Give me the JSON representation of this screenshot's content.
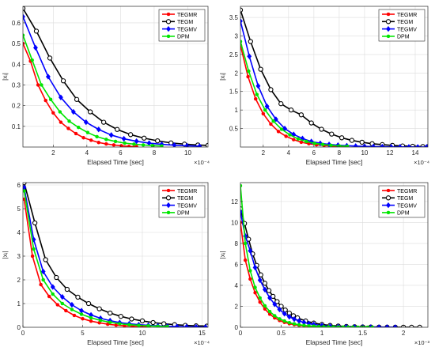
{
  "legend_entries": [
    "TEGMR",
    "TEGM",
    "TEGMV",
    "DPM"
  ],
  "series_colors": {
    "TEGMR": "#ff0000",
    "TEGM": "#000000",
    "TEGMV": "#0000ff",
    "DPM": "#00e600"
  },
  "chart_data": [
    {
      "type": "line",
      "xlabel": "Elapsed Time [sec]",
      "ylabel": "|xᵢ|",
      "xlim": [
        0.2,
        11.2
      ],
      "ylim": [
        0,
        0.68
      ],
      "x_ticks": [
        2,
        4,
        6,
        8,
        10
      ],
      "x_tick_labels": [
        "2",
        "4",
        "6",
        "8",
        "10"
      ],
      "y_ticks": [
        0.1,
        0.2,
        0.3,
        0.4,
        0.5,
        0.6
      ],
      "y_tick_labels": [
        "0.1",
        "0.2",
        "0.3",
        "0.4",
        "0.5",
        "0.6"
      ],
      "x_exponent": "×10⁻⁴",
      "grid": true,
      "legend_position": "top-right",
      "series": [
        {
          "name": "TEGMR",
          "marker": "dot",
          "x": [
            0.2,
            0.65,
            1.1,
            1.55,
            2.0,
            2.45,
            2.9,
            3.35,
            3.8,
            4.25,
            4.7,
            5.15,
            5.6,
            6.05,
            6.5,
            6.95
          ],
          "y": [
            0.5,
            0.415,
            0.3,
            0.225,
            0.165,
            0.12,
            0.09,
            0.065,
            0.045,
            0.033,
            0.022,
            0.015,
            0.01,
            0.006,
            0.003,
            0.002
          ]
        },
        {
          "name": "TEGM",
          "marker": "circle",
          "x": [
            0.2,
            1.0,
            1.8,
            2.6,
            3.4,
            4.2,
            5.0,
            5.8,
            6.6,
            7.4,
            8.2,
            9.0,
            9.8,
            10.6,
            11.2
          ],
          "y": [
            0.67,
            0.56,
            0.43,
            0.32,
            0.23,
            0.17,
            0.12,
            0.085,
            0.06,
            0.043,
            0.03,
            0.02,
            0.014,
            0.01,
            0.008
          ]
        },
        {
          "name": "TEGMV",
          "marker": "diamond",
          "x": [
            0.2,
            0.95,
            1.7,
            2.45,
            3.2,
            3.95,
            4.7,
            5.45,
            6.2,
            6.95,
            7.7,
            8.45,
            9.2,
            9.95,
            10.7
          ],
          "y": [
            0.63,
            0.48,
            0.34,
            0.24,
            0.17,
            0.12,
            0.085,
            0.058,
            0.04,
            0.028,
            0.019,
            0.013,
            0.009,
            0.006,
            0.004
          ]
        },
        {
          "name": "DPM",
          "marker": "dot",
          "x": [
            0.2,
            0.75,
            1.3,
            1.85,
            2.4,
            2.95,
            3.5,
            4.05,
            4.6,
            5.15,
            5.7,
            6.25,
            6.8,
            7.35,
            7.9,
            8.45
          ],
          "y": [
            0.54,
            0.42,
            0.3,
            0.23,
            0.17,
            0.125,
            0.095,
            0.07,
            0.05,
            0.037,
            0.027,
            0.019,
            0.014,
            0.01,
            0.007,
            0.005
          ]
        }
      ]
    },
    {
      "type": "line",
      "xlabel": "Elapsed Time [sec]",
      "ylabel": "|xᵢ|",
      "xlim": [
        0.2,
        15.0
      ],
      "ylim": [
        0,
        3.8
      ],
      "x_ticks": [
        2,
        4,
        6,
        8,
        10,
        12,
        14
      ],
      "x_tick_labels": [
        "2",
        "4",
        "6",
        "8",
        "10",
        "12",
        "14"
      ],
      "y_ticks": [
        0.5,
        1,
        1.5,
        2,
        2.5,
        3,
        3.5
      ],
      "y_tick_labels": [
        "0.5",
        "1",
        "1.5",
        "2",
        "2.5",
        "3",
        "3.5"
      ],
      "x_exponent": "×10⁻⁴",
      "grid": true,
      "legend_position": "top-right",
      "series": [
        {
          "name": "TEGMR",
          "marker": "dot",
          "x": [
            0.2,
            0.8,
            1.4,
            2.0,
            2.6,
            3.2,
            3.8,
            4.4,
            5.0,
            5.6,
            6.2,
            6.8,
            7.4,
            8.0,
            8.6
          ],
          "y": [
            2.75,
            1.9,
            1.3,
            0.9,
            0.62,
            0.42,
            0.29,
            0.2,
            0.13,
            0.09,
            0.06,
            0.04,
            0.025,
            0.015,
            0.01
          ]
        },
        {
          "name": "TEGM",
          "marker": "circle",
          "x": [
            0.2,
            1.0,
            1.8,
            2.6,
            3.4,
            4.2,
            5.0,
            5.8,
            6.6,
            7.4,
            8.2,
            9.0,
            9.8,
            10.6,
            11.4,
            12.2,
            13.0,
            13.8,
            14.6,
            15.0
          ],
          "y": [
            3.7,
            2.85,
            2.1,
            1.55,
            1.17,
            1.0,
            0.87,
            0.65,
            0.48,
            0.35,
            0.25,
            0.18,
            0.13,
            0.09,
            0.065,
            0.045,
            0.03,
            0.02,
            0.013,
            0.01
          ]
        },
        {
          "name": "TEGMV",
          "marker": "diamond",
          "x": [
            0.2,
            0.9,
            1.6,
            2.3,
            3.0,
            3.7,
            4.4,
            5.1,
            5.8,
            6.5,
            7.2,
            7.9,
            8.6,
            9.3,
            10.0,
            10.7,
            11.4,
            12.1,
            12.8,
            13.5,
            14.2,
            14.9
          ],
          "y": [
            3.4,
            2.45,
            1.65,
            1.1,
            0.75,
            0.5,
            0.34,
            0.23,
            0.15,
            0.1,
            0.07,
            0.05,
            0.035,
            0.025,
            0.018,
            0.012,
            0.009,
            0.006,
            0.004,
            0.003,
            0.002,
            0.001
          ]
        },
        {
          "name": "DPM",
          "marker": "dot",
          "x": [
            0.2,
            0.85,
            1.5,
            2.15,
            2.8,
            3.45,
            4.1,
            4.75,
            5.4,
            6.05,
            6.7,
            7.35,
            8.0,
            8.65
          ],
          "y": [
            2.85,
            2.05,
            1.42,
            1.0,
            0.7,
            0.48,
            0.33,
            0.22,
            0.15,
            0.1,
            0.07,
            0.045,
            0.03,
            0.02
          ]
        }
      ]
    },
    {
      "type": "line",
      "xlabel": "Elapsed Time [sec]",
      "ylabel": "|xᵢ|",
      "xlim": [
        0,
        15.5
      ],
      "ylim": [
        0,
        6.1
      ],
      "x_ticks": [
        0,
        5,
        10,
        15
      ],
      "x_tick_labels": [
        "0",
        "5",
        "10",
        "15"
      ],
      "y_ticks": [
        0,
        1,
        2,
        3,
        4,
        5,
        6
      ],
      "y_tick_labels": [
        "0",
        "1",
        "2",
        "3",
        "4",
        "5",
        "6"
      ],
      "x_exponent": "×10⁻⁴",
      "grid": true,
      "legend_position": "top-right",
      "series": [
        {
          "name": "TEGMR",
          "marker": "dot",
          "x": [
            0.1,
            0.8,
            1.5,
            2.2,
            2.9,
            3.6,
            4.3,
            5.0,
            5.7,
            6.4,
            7.1,
            7.8,
            8.5,
            9.2,
            9.9,
            10.6
          ],
          "y": [
            5.4,
            3.0,
            1.8,
            1.3,
            0.95,
            0.7,
            0.5,
            0.36,
            0.26,
            0.19,
            0.13,
            0.09,
            0.06,
            0.04,
            0.03,
            0.02
          ]
        },
        {
          "name": "TEGM",
          "marker": "circle",
          "x": [
            0.1,
            1.0,
            1.9,
            2.8,
            3.7,
            4.6,
            5.5,
            6.4,
            7.3,
            8.2,
            9.1,
            10.0,
            10.9,
            11.8,
            12.7,
            13.6,
            14.5,
            15.4
          ],
          "y": [
            6.1,
            4.4,
            2.85,
            2.1,
            1.6,
            1.27,
            1.0,
            0.78,
            0.6,
            0.46,
            0.35,
            0.27,
            0.2,
            0.15,
            0.11,
            0.08,
            0.06,
            0.05
          ]
        },
        {
          "name": "TEGMV",
          "marker": "diamond",
          "x": [
            0.1,
            0.9,
            1.7,
            2.5,
            3.3,
            4.1,
            4.9,
            5.7,
            6.5,
            7.3,
            8.1,
            8.9,
            9.7,
            10.5,
            11.3,
            12.1,
            12.9,
            13.7,
            14.5,
            15.3
          ],
          "y": [
            5.9,
            3.7,
            2.35,
            1.7,
            1.28,
            0.95,
            0.7,
            0.52,
            0.38,
            0.28,
            0.2,
            0.15,
            0.11,
            0.08,
            0.06,
            0.04,
            0.03,
            0.02,
            0.015,
            0.01
          ]
        },
        {
          "name": "DPM",
          "marker": "dot",
          "x": [
            0.1,
            0.9,
            1.7,
            2.5,
            3.3,
            4.1,
            4.9,
            5.7,
            6.5,
            7.3,
            8.1,
            8.9,
            9.7,
            10.5,
            11.3,
            12.1
          ],
          "y": [
            5.75,
            3.3,
            2.0,
            1.4,
            1.0,
            0.75,
            0.55,
            0.4,
            0.29,
            0.21,
            0.15,
            0.11,
            0.08,
            0.06,
            0.04,
            0.03
          ]
        }
      ]
    },
    {
      "type": "line",
      "xlabel": "Elapsed Time [sec]",
      "ylabel": "|xᵢ|",
      "xlim": [
        0,
        2.3
      ],
      "ylim": [
        0,
        13.8
      ],
      "x_ticks": [
        0,
        0.5,
        1,
        1.5,
        2
      ],
      "x_tick_labels": [
        "0",
        "0.5",
        "1",
        "1.5",
        "2"
      ],
      "y_ticks": [
        0,
        2,
        4,
        6,
        8,
        10,
        12
      ],
      "y_tick_labels": [
        "0",
        "2",
        "4",
        "6",
        "8",
        "10",
        "12"
      ],
      "x_exponent": "×10⁻³",
      "grid": true,
      "legend_position": "top-right",
      "series": [
        {
          "name": "TEGMR",
          "marker": "dot",
          "x": [
            0.0,
            0.06,
            0.12,
            0.18,
            0.24,
            0.3,
            0.36,
            0.42,
            0.48,
            0.54,
            0.6,
            0.66,
            0.72,
            0.78,
            0.84,
            0.9,
            0.96,
            1.02,
            1.08
          ],
          "y": [
            10.0,
            6.4,
            4.6,
            3.3,
            2.4,
            1.75,
            1.25,
            0.9,
            0.65,
            0.47,
            0.34,
            0.25,
            0.18,
            0.13,
            0.09,
            0.07,
            0.05,
            0.035,
            0.025
          ]
        },
        {
          "name": "TEGM",
          "marker": "circle",
          "x": [
            0.0,
            0.05,
            0.1,
            0.15,
            0.2,
            0.25,
            0.3,
            0.35,
            0.4,
            0.45,
            0.5,
            0.55,
            0.6,
            0.65,
            0.7,
            0.8,
            0.9,
            1.0,
            1.1,
            1.2,
            1.3,
            1.4,
            1.5,
            1.6,
            1.7,
            1.8,
            1.9,
            2.0,
            2.1,
            2.2
          ],
          "y": [
            11.3,
            9.9,
            8.4,
            7.0,
            5.9,
            5.0,
            4.2,
            3.5,
            2.95,
            2.45,
            2.0,
            1.65,
            1.35,
            1.1,
            0.9,
            0.6,
            0.4,
            0.27,
            0.18,
            0.12,
            0.08,
            0.055,
            0.04,
            0.03,
            0.02,
            0.015,
            0.01,
            0.008,
            0.006,
            0.005
          ]
        },
        {
          "name": "TEGMV",
          "marker": "diamond",
          "x": [
            0.0,
            0.06,
            0.12,
            0.18,
            0.24,
            0.3,
            0.36,
            0.42,
            0.48,
            0.54,
            0.6,
            0.66,
            0.72,
            0.78,
            0.84,
            0.9,
            1.0,
            1.1,
            1.2,
            1.3,
            1.4,
            1.5,
            1.6,
            1.7,
            1.8,
            1.9
          ],
          "y": [
            11.0,
            8.7,
            7.3,
            5.7,
            4.5,
            3.6,
            2.8,
            2.2,
            1.7,
            1.3,
            1.0,
            0.78,
            0.6,
            0.46,
            0.35,
            0.27,
            0.17,
            0.1,
            0.06,
            0.04,
            0.025,
            0.015,
            0.01,
            0.007,
            0.005,
            0.003
          ]
        },
        {
          "name": "DPM",
          "marker": "dot",
          "x": [
            0.0,
            0.06,
            0.12,
            0.18,
            0.24,
            0.3,
            0.36,
            0.42,
            0.48,
            0.54,
            0.6,
            0.66,
            0.72,
            0.78,
            0.84,
            0.9,
            0.96,
            1.02,
            1.08,
            1.14,
            1.2,
            1.26,
            1.32,
            1.38,
            1.44,
            1.5,
            1.56,
            1.62
          ],
          "y": [
            13.5,
            8.0,
            5.4,
            3.8,
            2.8,
            2.05,
            1.5,
            1.1,
            0.8,
            0.6,
            0.44,
            0.33,
            0.24,
            0.18,
            0.13,
            0.1,
            0.07,
            0.05,
            0.04,
            0.03,
            0.02,
            0.015,
            0.01,
            0.008,
            0.006,
            0.004,
            0.003,
            0.002
          ]
        }
      ]
    }
  ]
}
